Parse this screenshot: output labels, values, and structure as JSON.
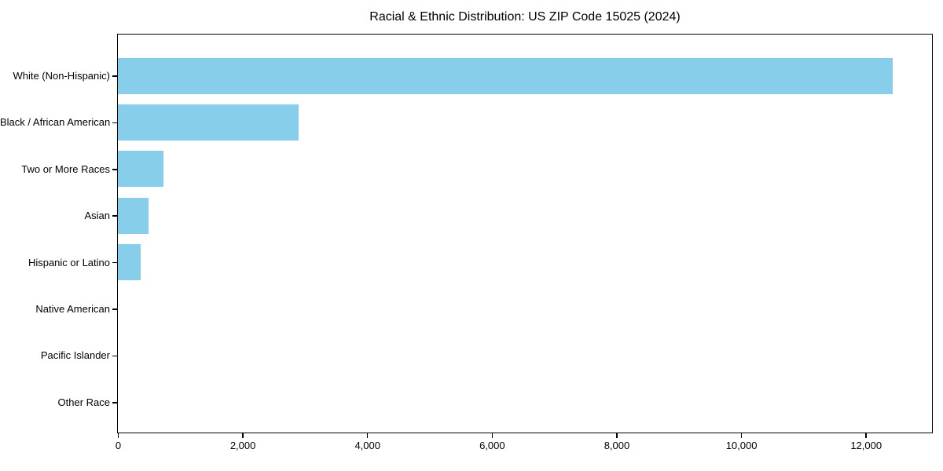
{
  "figure": {
    "background": "#ffffff"
  },
  "chart_data": {
    "type": "bar",
    "orientation": "horizontal",
    "title": "Racial & Ethnic Distribution: US ZIP Code 15025 (2024)",
    "categories": [
      "White (Non-Hispanic)",
      "Black / African American",
      "Two or More Races",
      "Asian",
      "Hispanic or Latino",
      "Native American",
      "Pacific Islander",
      "Other Race"
    ],
    "values": [
      12430,
      2900,
      730,
      490,
      365,
      0,
      0,
      0
    ],
    "bar_color": "#87CEEB",
    "axis_color": "#000000",
    "text_color": "#000000",
    "xlabel": "",
    "ylabel": "",
    "xlim": [
      0,
      13050
    ],
    "x_ticks": [
      0,
      2000,
      4000,
      6000,
      8000,
      10000,
      12000
    ],
    "x_tick_labels": [
      "0",
      "2,000",
      "4,000",
      "6,000",
      "8,000",
      "10,000",
      "12,000"
    ],
    "grid": false,
    "legend": "none"
  }
}
